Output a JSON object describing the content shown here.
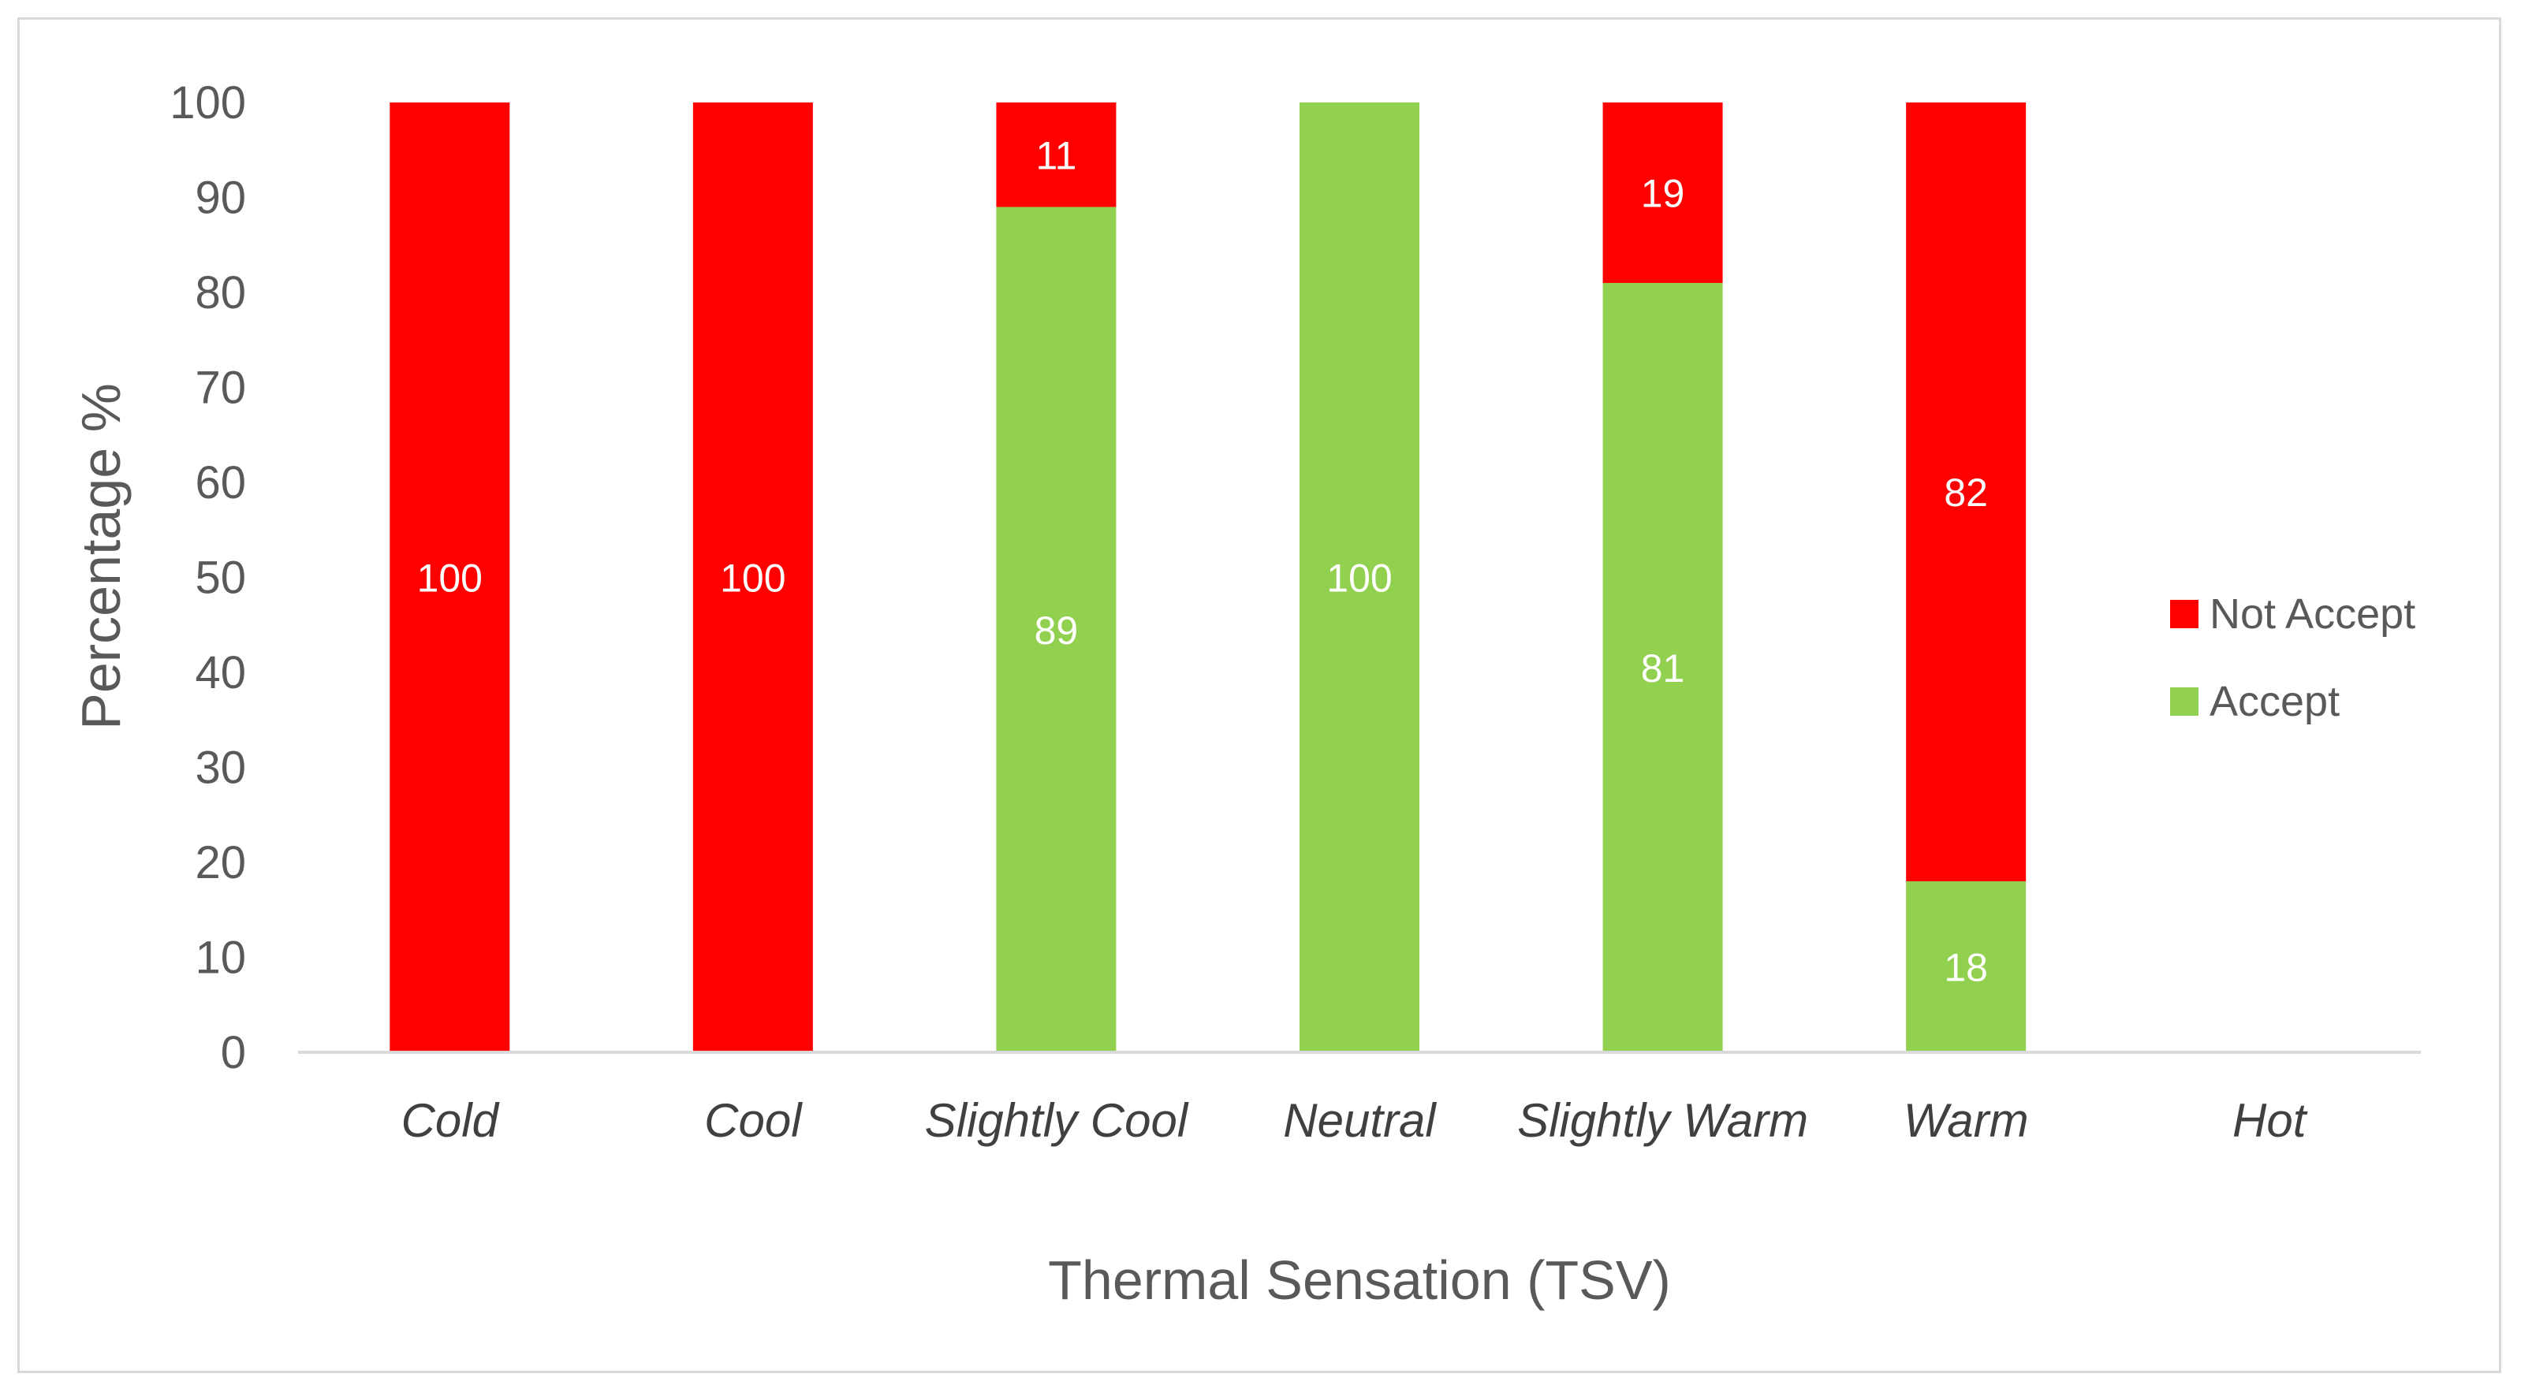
{
  "chart_data": {
    "type": "bar",
    "stacked": true,
    "categories": [
      "Cold",
      "Cool",
      "Slightly Cool",
      "Neutral",
      "Slightly Warm",
      "Warm",
      "Hot"
    ],
    "series": [
      {
        "name": "Accept",
        "color": "#92d050",
        "values": [
          0,
          0,
          89,
          100,
          81,
          18,
          0
        ]
      },
      {
        "name": "Not Accept",
        "color": "#ff0000",
        "values": [
          100,
          100,
          11,
          0,
          19,
          82,
          0
        ]
      }
    ],
    "data_labels": {
      "Accept": [
        "",
        "",
        "89",
        "100",
        "81",
        "18",
        ""
      ],
      "Not Accept": [
        "100",
        "100",
        "11",
        "",
        "19",
        "82",
        ""
      ]
    },
    "title": "",
    "xlabel": "Thermal Sensation (TSV)",
    "ylabel": "Percentage %",
    "ylim": [
      0,
      100
    ],
    "yticks": [
      0,
      10,
      20,
      30,
      40,
      50,
      60,
      70,
      80,
      90,
      100
    ],
    "grid": false,
    "legend_position": "right",
    "legend_order": [
      "Not Accept",
      "Accept"
    ]
  }
}
